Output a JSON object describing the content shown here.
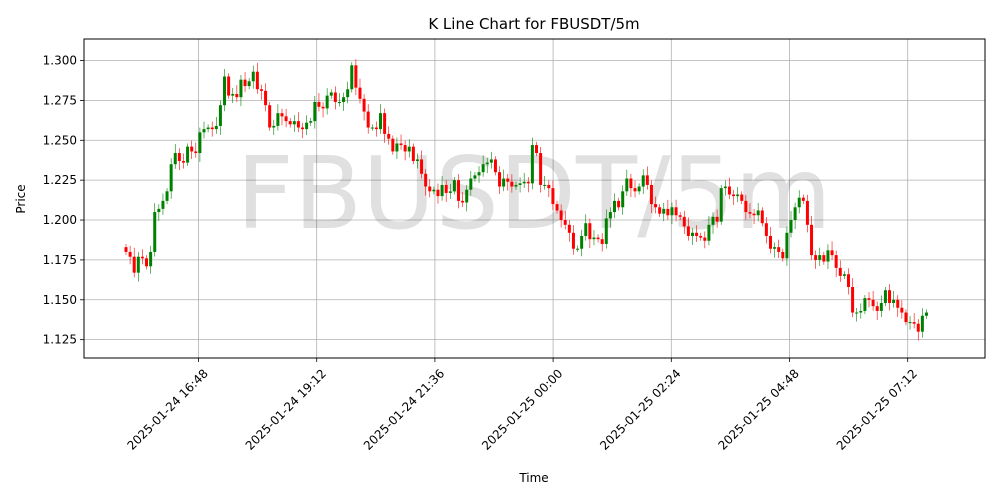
{
  "chart_data": {
    "type": "candlestick",
    "title": "K Line Chart for FBUSDT/5m",
    "watermark": "FBUSDT/5m",
    "xlabel": "Time",
    "ylabel": "Price",
    "ylim": [
      1.1135,
      1.3135
    ],
    "y_ticks": [
      "1.125",
      "1.150",
      "1.175",
      "1.200",
      "1.225",
      "1.250",
      "1.275",
      "1.300"
    ],
    "x_ticks": [
      "2025-01-24 16:48",
      "2025-01-24 19:12",
      "2025-01-24 21:36",
      "2025-01-25 00:00",
      "2025-01-25 02:24",
      "2025-01-25 04:48",
      "2025-01-25 07:12"
    ],
    "grid": true,
    "colors": {
      "up": "#008000",
      "down": "#ff0000",
      "grid": "#b0b0b0"
    },
    "close_series": [
      1.18,
      1.177,
      1.167,
      1.177,
      1.176,
      1.171,
      1.18,
      1.205,
      1.207,
      1.212,
      1.218,
      1.235,
      1.242,
      1.237,
      1.236,
      1.246,
      1.243,
      1.242,
      1.255,
      1.257,
      1.258,
      1.257,
      1.259,
      1.272,
      1.29,
      1.278,
      1.279,
      1.277,
      1.288,
      1.284,
      1.287,
      1.293,
      1.282,
      1.281,
      1.272,
      1.258,
      1.259,
      1.267,
      1.265,
      1.262,
      1.26,
      1.262,
      1.258,
      1.257,
      1.261,
      1.262,
      1.274,
      1.271,
      1.27,
      1.278,
      1.28,
      1.274,
      1.274,
      1.277,
      1.282,
      1.297,
      1.283,
      1.276,
      1.268,
      1.258,
      1.258,
      1.257,
      1.267,
      1.254,
      1.251,
      1.243,
      1.248,
      1.247,
      1.243,
      1.246,
      1.237,
      1.238,
      1.229,
      1.221,
      1.218,
      1.219,
      1.215,
      1.222,
      1.217,
      1.218,
      1.225,
      1.212,
      1.211,
      1.219,
      1.226,
      1.228,
      1.23,
      1.235,
      1.236,
      1.238,
      1.23,
      1.221,
      1.226,
      1.224,
      1.221,
      1.222,
      1.223,
      1.224,
      1.223,
      1.247,
      1.242,
      1.222,
      1.222,
      1.22,
      1.21,
      1.206,
      1.2,
      1.197,
      1.192,
      1.182,
      1.182,
      1.19,
      1.198,
      1.188,
      1.189,
      1.188,
      1.185,
      1.201,
      1.205,
      1.212,
      1.208,
      1.218,
      1.226,
      1.22,
      1.218,
      1.221,
      1.228,
      1.222,
      1.21,
      1.208,
      1.204,
      1.207,
      1.203,
      1.208,
      1.203,
      1.202,
      1.196,
      1.19,
      1.192,
      1.19,
      1.189,
      1.187,
      1.197,
      1.202,
      1.199,
      1.22,
      1.221,
      1.216,
      1.215,
      1.216,
      1.212,
      1.205,
      1.204,
      1.203,
      1.206,
      1.198,
      1.19,
      1.182,
      1.183,
      1.18,
      1.176,
      1.192,
      1.2,
      1.208,
      1.214,
      1.212,
      1.197,
      1.178,
      1.175,
      1.178,
      1.174,
      1.181,
      1.178,
      1.17,
      1.165,
      1.166,
      1.158,
      1.142,
      1.142,
      1.143,
      1.151,
      1.15,
      1.146,
      1.143,
      1.148,
      1.156,
      1.148,
      1.15,
      1.145,
      1.142,
      1.136,
      1.136,
      1.135,
      1.13,
      1.14,
      1.142
    ]
  }
}
